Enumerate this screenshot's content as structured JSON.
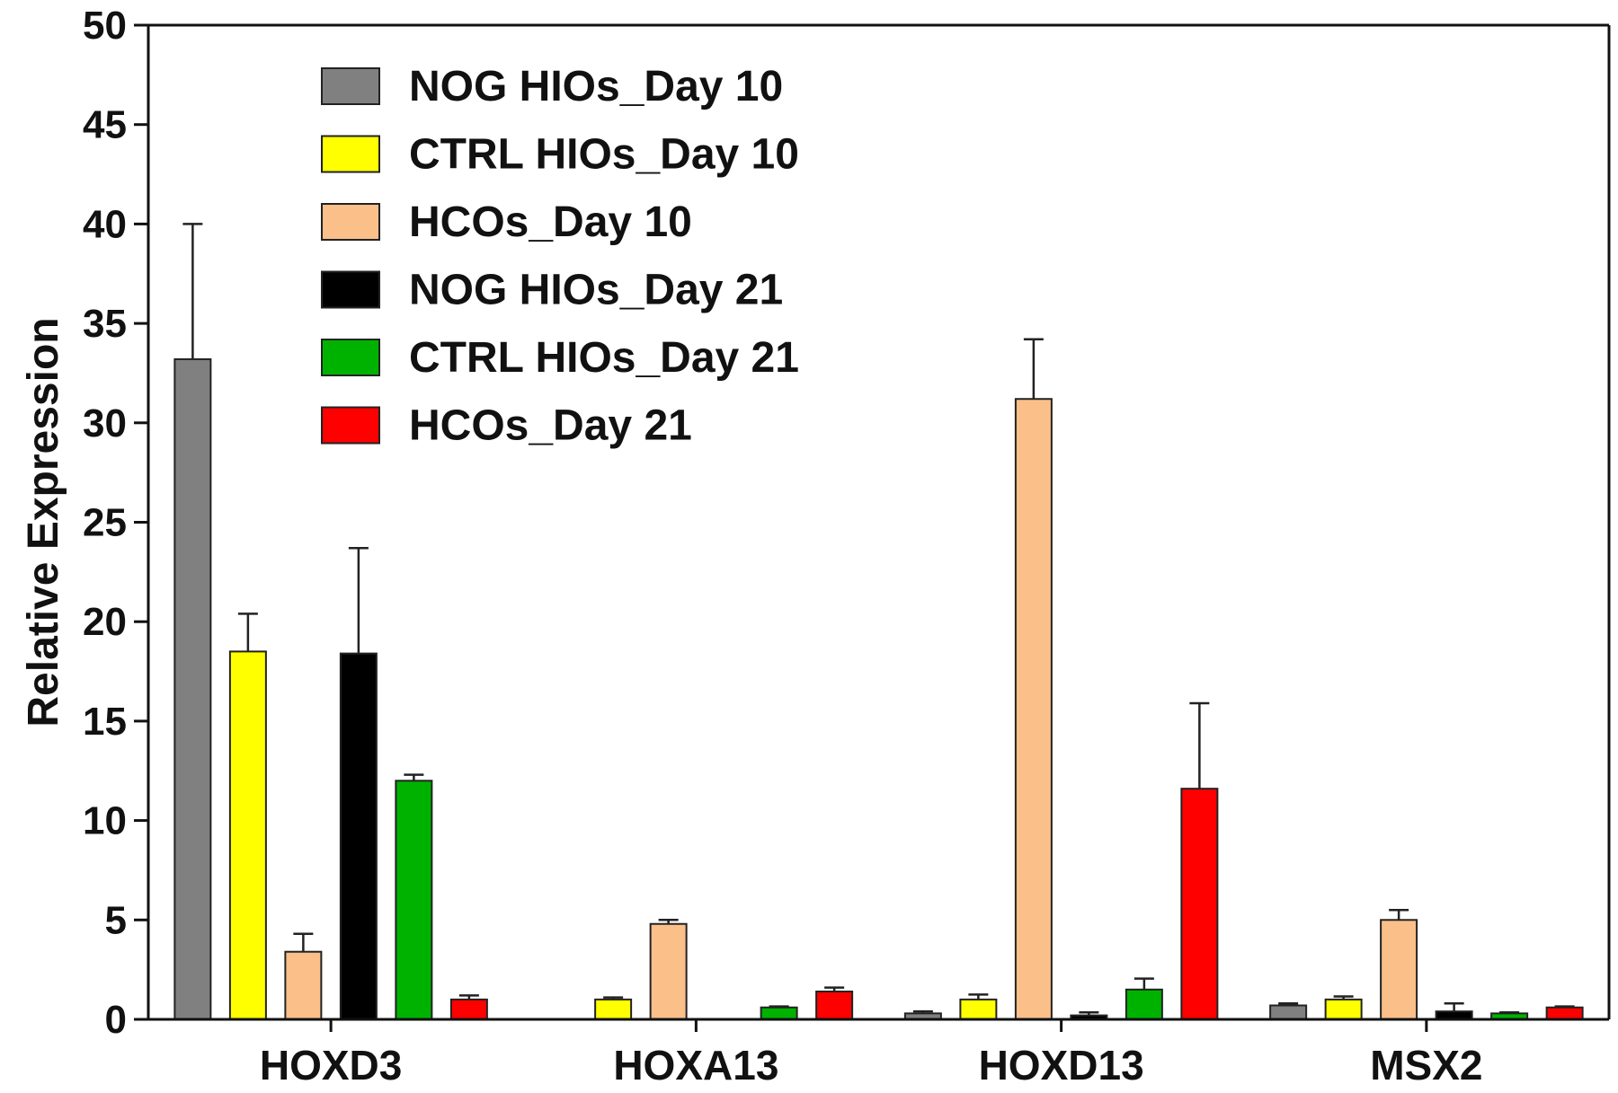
{
  "chart_data": {
    "type": "bar",
    "ylabel": "Relative Expression",
    "xlabel": "",
    "ylim": [
      0,
      50
    ],
    "yticks": [
      "0",
      "5",
      "10",
      "15",
      "20",
      "25",
      "30",
      "35",
      "40",
      "45",
      "50"
    ],
    "categories": [
      "HOXD3",
      "HOXA13",
      "HOXD13",
      "MSX2"
    ],
    "legend_position": "top-left",
    "series": [
      {
        "name": "NOG HIOs_Day 10",
        "color": "#808080",
        "values": [
          33.2,
          0.0,
          0.3,
          0.7
        ],
        "errors": [
          6.8,
          0.0,
          0.1,
          0.1
        ]
      },
      {
        "name": "CTRL HIOs_Day 10",
        "color": "#ffff00",
        "values": [
          18.5,
          1.0,
          1.0,
          1.0
        ],
        "errors": [
          1.9,
          0.1,
          0.25,
          0.15
        ]
      },
      {
        "name": "HCOs_Day 10",
        "color": "#fbbf8a",
        "values": [
          3.4,
          4.8,
          31.2,
          5.0
        ],
        "errors": [
          0.9,
          0.2,
          3.0,
          0.5
        ]
      },
      {
        "name": "NOG HIOs_Day 21",
        "color": "#000000",
        "values": [
          18.4,
          0.0,
          0.2,
          0.4
        ],
        "errors": [
          5.3,
          0.0,
          0.15,
          0.4
        ]
      },
      {
        "name": "CTRL HIOs_Day 21",
        "color": "#00b200",
        "values": [
          12.0,
          0.6,
          1.5,
          0.3
        ],
        "errors": [
          0.3,
          0.05,
          0.55,
          0.05
        ]
      },
      {
        "name": "HCOs_Day 21",
        "color": "#ff0000",
        "values": [
          1.0,
          1.4,
          11.6,
          0.6
        ],
        "errors": [
          0.2,
          0.2,
          4.3,
          0.05
        ]
      }
    ]
  }
}
